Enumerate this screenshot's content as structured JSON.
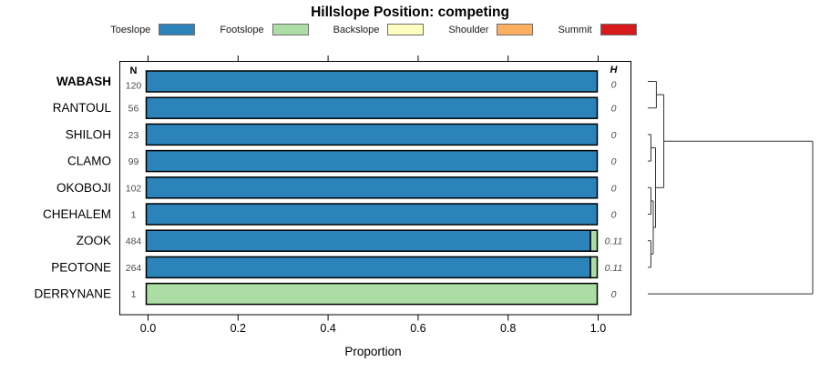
{
  "title": "Hillslope Position: competing",
  "legend": {
    "items": [
      {
        "label": "Toeslope",
        "color": "#2B83BA"
      },
      {
        "label": "Footslope",
        "color": "#ABDDA4"
      },
      {
        "label": "Backslope",
        "color": "#FFFFBF"
      },
      {
        "label": "Shoulder",
        "color": "#FDAE61"
      },
      {
        "label": "Summit",
        "color": "#D7191C"
      }
    ]
  },
  "columns": {
    "n_header": "N",
    "h_header": "H"
  },
  "axis": {
    "xlabel": "Proportion",
    "tick_labels": [
      "0.0",
      "0.2",
      "0.4",
      "0.6",
      "0.8",
      "1.0"
    ]
  },
  "chart_data": {
    "type": "bar",
    "orientation": "horizontal-stacked",
    "title": "Hillslope Position: competing",
    "xlabel": "Proportion",
    "xlim": [
      0,
      1
    ],
    "xticks": [
      0.0,
      0.2,
      0.4,
      0.6,
      0.8,
      1.0
    ],
    "categories": [
      "WABASH",
      "RANTOUL",
      "SHILOH",
      "CLAMO",
      "OKOBOJI",
      "CHEHALEM",
      "ZOOK",
      "PEOTONE",
      "DERRYNANE"
    ],
    "highlighted_category": "WABASH",
    "series": [
      {
        "name": "Toeslope",
        "color": "#2B83BA",
        "values": [
          1,
          1,
          1,
          1,
          1,
          1,
          0.985,
          0.985,
          0
        ]
      },
      {
        "name": "Footslope",
        "color": "#ABDDA4",
        "values": [
          0,
          0,
          0,
          0,
          0,
          0,
          0.015,
          0.015,
          1
        ]
      },
      {
        "name": "Backslope",
        "color": "#FFFFBF",
        "values": [
          0,
          0,
          0,
          0,
          0,
          0,
          0,
          0,
          0
        ]
      },
      {
        "name": "Shoulder",
        "color": "#FDAE61",
        "values": [
          0,
          0,
          0,
          0,
          0,
          0,
          0,
          0,
          0
        ]
      },
      {
        "name": "Summit",
        "color": "#D7191C",
        "values": [
          0,
          0,
          0,
          0,
          0,
          0,
          0,
          0,
          0
        ]
      }
    ],
    "n_obs": [
      "120",
      "56",
      "23",
      "99",
      "102",
      "1",
      "484",
      "264",
      "1"
    ],
    "shannon_H": [
      "0",
      "0",
      "0",
      "0",
      "0",
      "0",
      "0.11",
      "0.11",
      "0"
    ],
    "legend_position": "top",
    "grid": false,
    "dendrogram": {
      "side": "right",
      "merges": [
        [
          "WABASH",
          "RANTOUL",
          0.052
        ],
        [
          "SHILOH",
          "CLAMO",
          0.019
        ],
        [
          "OKOBOJI",
          "CHEHALEM",
          0.019
        ],
        [
          "ZOOK",
          "PEOTONE",
          0.019
        ],
        [
          "m3",
          "m4",
          0.033
        ],
        [
          "m2",
          "m5",
          0.047
        ],
        [
          "m1",
          "m6",
          0.097
        ],
        [
          "m7",
          "DERRYNANE",
          1.0
        ]
      ]
    }
  }
}
